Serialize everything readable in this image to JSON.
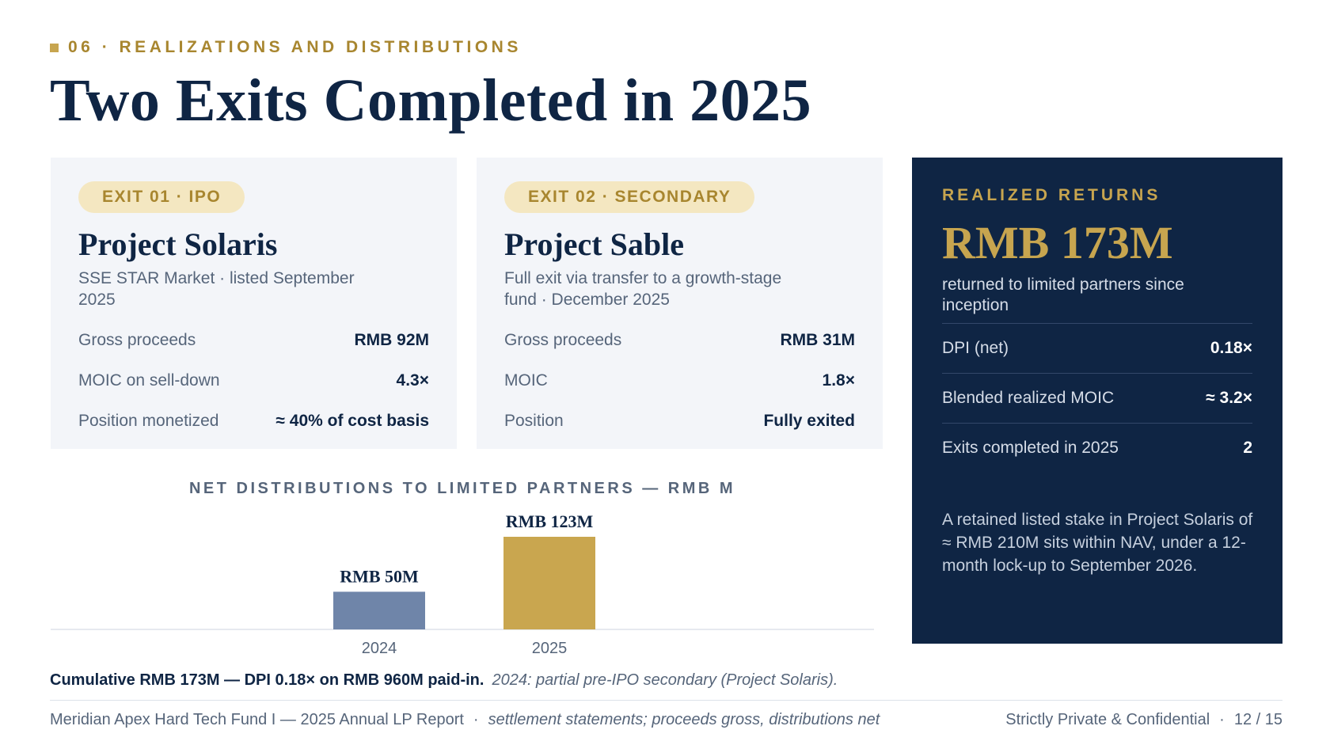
{
  "eyebrow": "06 · REALIZATIONS AND DISTRIBUTIONS",
  "title": "Two Exits Completed in 2025",
  "exits": [
    {
      "tag": "EXIT 01 · IPO",
      "name": "Project Solaris",
      "subtitle": "SSE STAR Market · listed September 2025",
      "rows": [
        {
          "label": "Gross proceeds",
          "value": "RMB 92M"
        },
        {
          "label": "MOIC on sell-down",
          "value": "4.3×"
        },
        {
          "label": "Position monetized",
          "value": "≈ 40% of cost basis"
        }
      ]
    },
    {
      "tag": "EXIT 02 · SECONDARY",
      "name": "Project Sable",
      "subtitle": "Full exit via transfer to a growth-stage fund · December 2025",
      "rows": [
        {
          "label": "Gross proceeds",
          "value": "RMB 31M"
        },
        {
          "label": "MOIC",
          "value": "1.8×"
        },
        {
          "label": "Position",
          "value": "Fully exited"
        }
      ]
    }
  ],
  "realized": {
    "label": "REALIZED RETURNS",
    "amount": "RMB 173M",
    "description": "returned to limited partners since inception",
    "stats": [
      {
        "label": "DPI (net)",
        "value": "0.18×"
      },
      {
        "label": "Blended realized MOIC",
        "value": "≈ 3.2×"
      },
      {
        "label": "Exits completed in 2025",
        "value": "2"
      }
    ],
    "note": "A retained listed stake in Project Solaris of ≈ RMB 210M sits within NAV, under a 12-month lock-up to September 2026."
  },
  "chart_data": {
    "type": "bar",
    "title": "NET DISTRIBUTIONS TO LIMITED PARTNERS — RMB M",
    "categories": [
      "2024",
      "2025"
    ],
    "values": [
      50,
      123
    ],
    "data_labels": [
      "RMB 50M",
      "RMB 123M"
    ],
    "colors": [
      "#6f85a9",
      "#c9a64f"
    ],
    "xlabel": "",
    "ylabel": "",
    "grid": false
  },
  "summary": {
    "bold": "Cumulative RMB 173M — DPI 0.18× on RMB 960M paid-in.",
    "italic": "2024: partial pre-IPO secondary (Project Solaris)."
  },
  "footer": {
    "left": "Meridian Apex Hard Tech Fund I — 2025 Annual LP Report",
    "separator": "·",
    "source": "settlement statements; proceeds gross, distributions net",
    "confidential": "Strictly Private & Confidential",
    "page": "12 / 15"
  }
}
